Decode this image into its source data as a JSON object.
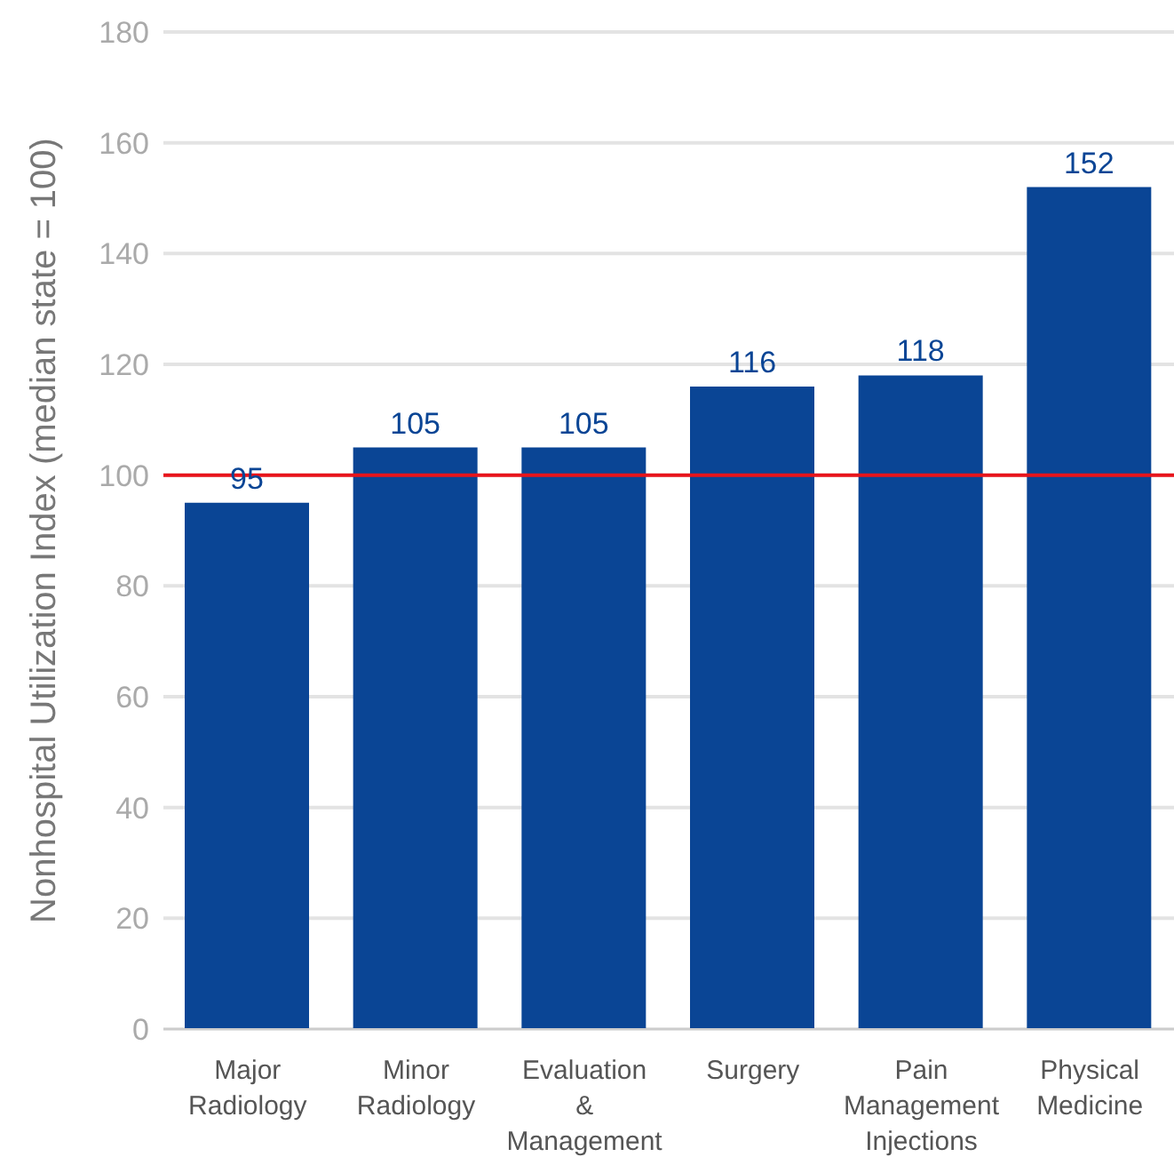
{
  "chart_data": {
    "type": "bar",
    "ylabel": "Nonhospital Utilization Index (median state = 100)",
    "categories": [
      "Major Radiology",
      "Minor Radiology",
      "Evaluation & Management",
      "Surgery",
      "Pain Management Injections",
      "Physical Medicine"
    ],
    "values": [
      95,
      105,
      105,
      116,
      118,
      152
    ],
    "color": "#0a4595",
    "ylim": [
      0,
      180
    ],
    "yticks": [
      0,
      20,
      40,
      60,
      80,
      100,
      120,
      140,
      160,
      180
    ],
    "grid": "y",
    "data_labels": true,
    "ref_lines": [
      {
        "axis": "y",
        "value": 100,
        "label": null,
        "color": "#e8141b"
      }
    ]
  }
}
